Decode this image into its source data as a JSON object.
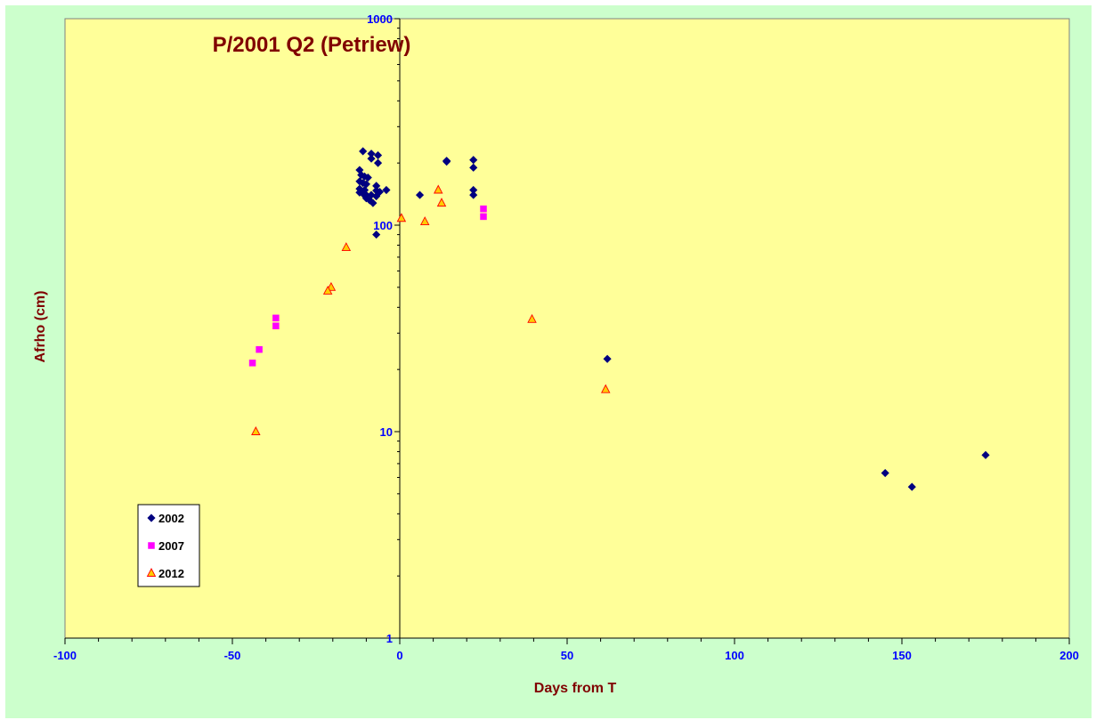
{
  "colors": {
    "outer_background": "#ccffcc",
    "plot_background": "#ffff99",
    "title_color": "#800000",
    "tick_label_color": "#0000ff",
    "axis_label_color": "#800000",
    "series_2002": "#000080",
    "series_2007": "#ff00ff",
    "series_2012_fill": "#ffcc00",
    "series_2012_edge": "#ff0000"
  },
  "chart_data": {
    "type": "scatter",
    "title": "P/2001 Q2 (Petriew)",
    "xlabel": "Days from T",
    "ylabel": "Afrho (cm)",
    "xlim": [
      -100,
      200
    ],
    "ylim": [
      1,
      1000
    ],
    "yscale": "log",
    "x_ticks": [
      -100,
      -50,
      0,
      50,
      100,
      150,
      200
    ],
    "x_tick_labels": [
      "-100",
      "-50",
      "0",
      "50",
      "100",
      "150",
      "200"
    ],
    "y_ticks": [
      1,
      10,
      100,
      1000
    ],
    "y_tick_labels": [
      "1",
      "10",
      "100",
      "1000"
    ],
    "grid": false,
    "legend_position": "bottom-left",
    "series": [
      {
        "name": "2002",
        "marker": "diamond",
        "points": [
          [
            -11,
            228
          ],
          [
            -8.5,
            222
          ],
          [
            -8.5,
            210
          ],
          [
            -6.5,
            218
          ],
          [
            -6.5,
            200
          ],
          [
            -12,
            185
          ],
          [
            -11.5,
            175
          ],
          [
            -10.5,
            172
          ],
          [
            -9.5,
            170
          ],
          [
            -12,
            163
          ],
          [
            -11,
            160
          ],
          [
            -10,
            158
          ],
          [
            -7,
            155
          ],
          [
            -12,
            150
          ],
          [
            -10.5,
            148
          ],
          [
            -7,
            147
          ],
          [
            -4,
            148
          ],
          [
            -6,
            145
          ],
          [
            -12,
            144
          ],
          [
            -11,
            142
          ],
          [
            -10,
            140
          ],
          [
            -8.5,
            140
          ],
          [
            -7,
            138
          ],
          [
            -10,
            135
          ],
          [
            -9,
            132
          ],
          [
            -8,
            128
          ],
          [
            -7,
            90
          ],
          [
            6,
            140
          ],
          [
            14,
            205
          ],
          [
            14,
            203
          ],
          [
            22,
            207
          ],
          [
            22,
            190
          ],
          [
            22,
            148
          ],
          [
            22,
            140
          ],
          [
            62,
            22.5
          ],
          [
            145,
            6.3
          ],
          [
            153,
            5.4
          ],
          [
            175,
            7.7
          ]
        ]
      },
      {
        "name": "2007",
        "marker": "square",
        "points": [
          [
            -44,
            21.5
          ],
          [
            -42,
            25
          ],
          [
            -37,
            35.5
          ],
          [
            -37,
            32.5
          ],
          [
            25,
            120
          ],
          [
            25,
            110
          ]
        ]
      },
      {
        "name": "2012",
        "marker": "triangle",
        "points": [
          [
            -43,
            10
          ],
          [
            -16,
            78
          ],
          [
            -20.5,
            50
          ],
          [
            -21.5,
            48
          ],
          [
            0.5,
            108
          ],
          [
            7.5,
            104
          ],
          [
            11.5,
            148
          ],
          [
            12.5,
            128
          ],
          [
            39.5,
            35
          ],
          [
            61.5,
            16
          ]
        ]
      }
    ]
  }
}
